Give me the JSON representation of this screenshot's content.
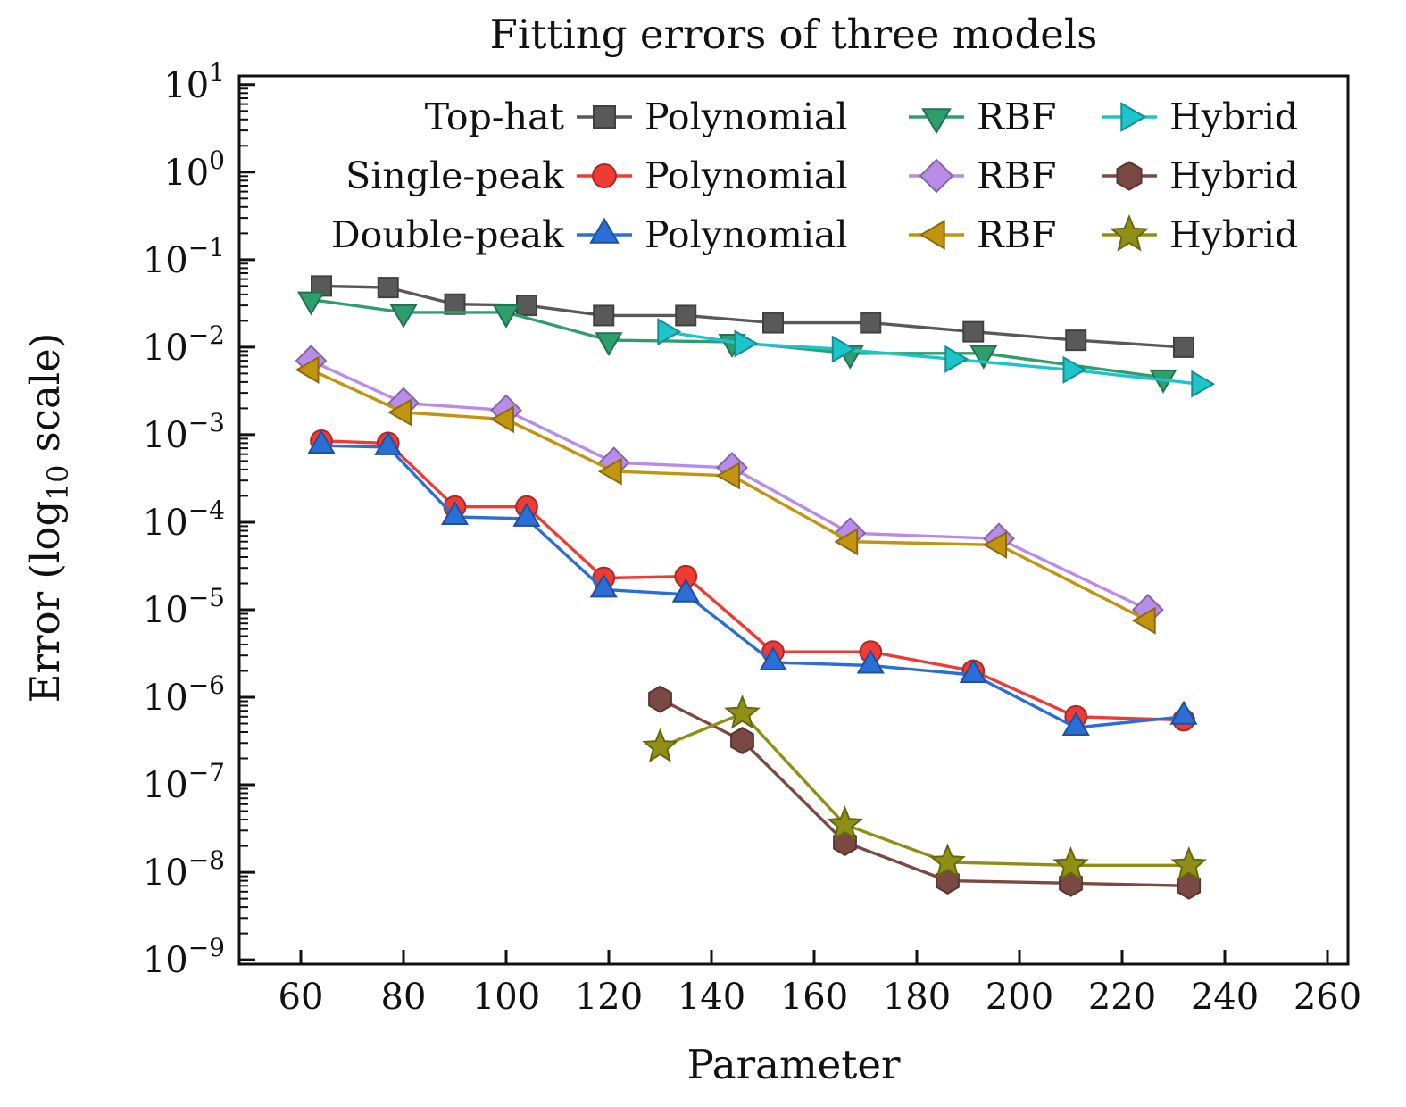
{
  "chart_data": {
    "type": "line",
    "title": "Fitting errors of three models",
    "xlabel": "Parameter",
    "ylabel": "Error (log10 scale)",
    "ylabel_parts": {
      "pre": "Error (log",
      "sub": "10",
      "post": " scale)"
    },
    "axes": {
      "xlim": [
        48,
        264
      ],
      "x_ticks": [
        60,
        80,
        100,
        120,
        140,
        160,
        180,
        200,
        220,
        240,
        260
      ],
      "y_scale": "log10",
      "y_exponent_lim": [
        -9.05,
        1.1
      ],
      "y_major_exponents": [
        -9,
        -8,
        -7,
        -6,
        -5,
        -4,
        -3,
        -2,
        -1,
        0,
        1
      ],
      "grid": false,
      "legend_position": "upper center inside"
    },
    "legend_groups": [
      {
        "group": "Top-hat",
        "entries": [
          "Polynomial",
          "RBF",
          "Hybrid"
        ]
      },
      {
        "group": "Single-peak",
        "entries": [
          "Polynomial",
          "RBF",
          "Hybrid"
        ]
      },
      {
        "group": "Double-peak",
        "entries": [
          "Polynomial",
          "RBF",
          "Hybrid"
        ]
      }
    ],
    "series": [
      {
        "group": "Top-hat",
        "name": "Polynomial",
        "color": "#595959",
        "marker": "square",
        "x": [
          64,
          77,
          90,
          104,
          119,
          135,
          152,
          171,
          191,
          211,
          232
        ],
        "y": [
          0.05,
          0.048,
          0.031,
          0.03,
          0.023,
          0.023,
          0.019,
          0.019,
          0.015,
          0.012,
          0.01
        ]
      },
      {
        "group": "Top-hat",
        "name": "RBF",
        "color": "#2f9e6e",
        "marker": "triangle-down",
        "x": [
          62,
          80,
          100,
          120,
          144,
          167,
          193,
          228
        ],
        "y": [
          0.035,
          0.025,
          0.025,
          0.012,
          0.0115,
          0.0085,
          0.0085,
          0.0045
        ]
      },
      {
        "group": "Top-hat",
        "name": "Hybrid",
        "color": "#1cc5c9",
        "marker": "triangle-right",
        "x": [
          131,
          146,
          165,
          187,
          210,
          235
        ],
        "y": [
          0.015,
          0.011,
          0.0095,
          0.0073,
          0.0055,
          0.0038
        ]
      },
      {
        "group": "Single-peak",
        "name": "Polynomial",
        "color": "#ee3b33",
        "marker": "circle",
        "x": [
          64,
          77,
          90,
          104,
          119,
          135,
          152,
          171,
          191,
          211,
          232
        ],
        "y": [
          0.00085,
          0.0008,
          0.00015,
          0.00015,
          2.3e-05,
          2.4e-05,
          3.3e-06,
          3.3e-06,
          2e-06,
          6e-07,
          5.5e-07
        ]
      },
      {
        "group": "Single-peak",
        "name": "RBF",
        "color": "#b88ce8",
        "marker": "diamond",
        "x": [
          62,
          80,
          100,
          121,
          144,
          167,
          196,
          225
        ],
        "y": [
          0.007,
          0.0023,
          0.0019,
          0.00048,
          0.00042,
          7.5e-05,
          6.5e-05,
          1e-05
        ]
      },
      {
        "group": "Single-peak",
        "name": "Hybrid",
        "color": "#7a4a42",
        "marker": "hexagon",
        "x": [
          130,
          146,
          166,
          186,
          210,
          233
        ],
        "y": [
          9.5e-07,
          3.2e-07,
          2.2e-08,
          8e-09,
          7.5e-09,
          7e-09
        ]
      },
      {
        "group": "Double-peak",
        "name": "Polynomial",
        "color": "#2b6fd6",
        "marker": "triangle-up",
        "x": [
          64,
          77,
          90,
          104,
          119,
          135,
          152,
          171,
          191,
          211,
          232
        ],
        "y": [
          0.00075,
          0.00072,
          0.000115,
          0.00011,
          1.7e-05,
          1.5e-05,
          2.5e-06,
          2.3e-06,
          1.8e-06,
          4.5e-07,
          6e-07
        ]
      },
      {
        "group": "Double-peak",
        "name": "RBF",
        "color": "#c2940f",
        "marker": "triangle-left",
        "x": [
          62,
          80,
          100,
          121,
          144,
          167,
          196,
          225
        ],
        "y": [
          0.0055,
          0.0018,
          0.0015,
          0.00038,
          0.00034,
          6e-05,
          5.5e-05,
          7.5e-06
        ]
      },
      {
        "group": "Double-peak",
        "name": "Hybrid",
        "color": "#8f8f16",
        "marker": "star",
        "x": [
          130,
          146,
          166,
          186,
          210,
          233
        ],
        "y": [
          2.7e-07,
          6.5e-07,
          3.5e-08,
          1.3e-08,
          1.2e-08,
          1.2e-08
        ]
      }
    ]
  }
}
